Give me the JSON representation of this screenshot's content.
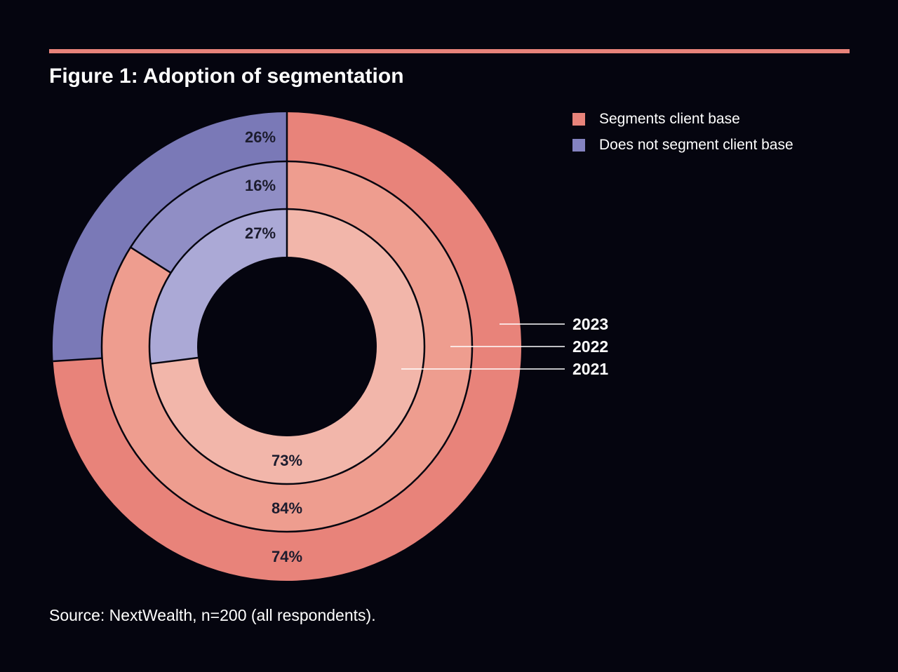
{
  "title": "Figure 1: Adoption of segmentation",
  "source": "Source: NextWealth, n=200 (all respondents).",
  "colors": {
    "background": "#05050f",
    "rule": "#e8837a",
    "segments_2023": "#e8837a",
    "segments_2022": "#ee9d8f",
    "segments_2021": "#f2b6aa",
    "not_2023": "#7a79b7",
    "not_2022": "#908ec5",
    "not_2021": "#aba9d6",
    "legend_segments": "#e8837a",
    "legend_not": "#8483c0"
  },
  "chart_data": {
    "type": "pie",
    "subtype": "nested-donut",
    "title": "Figure 1: Adoption of segmentation",
    "categories": [
      "Segments client base",
      "Does not segment client base"
    ],
    "rings": [
      {
        "year": "2023",
        "label": "2023",
        "position": "outer",
        "values": [
          74,
          26
        ],
        "value_labels": [
          "74%",
          "26%"
        ]
      },
      {
        "year": "2022",
        "label": "2022",
        "position": "middle",
        "values": [
          84,
          16
        ],
        "value_labels": [
          "84%",
          "16%"
        ]
      },
      {
        "year": "2021",
        "label": "2021",
        "position": "inner",
        "values": [
          73,
          27
        ],
        "value_labels": [
          "73%",
          "27%"
        ]
      }
    ],
    "legend": [
      {
        "label": "Segments client base",
        "color": "#e8837a"
      },
      {
        "label": "Does not segment client base",
        "color": "#8483c0"
      }
    ],
    "legend_position": "top-right",
    "start_angle": "12 o'clock",
    "direction": "clockwise"
  }
}
